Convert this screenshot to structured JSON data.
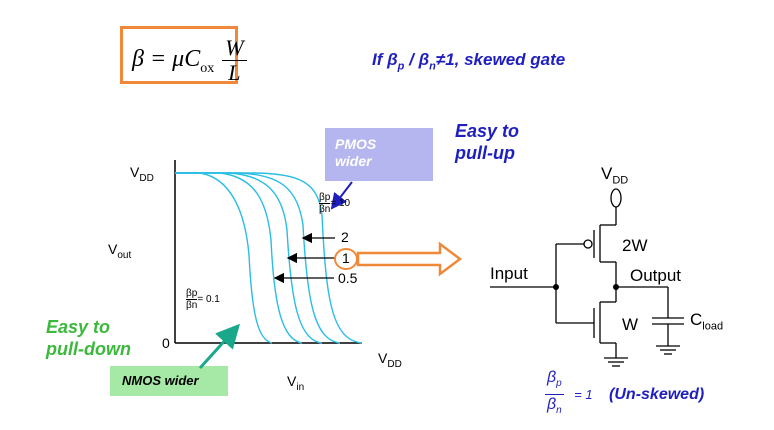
{
  "formula": {
    "lhs": "β = μC",
    "sub": "ox",
    "num": "W",
    "den": "L"
  },
  "skew_note": "If βp / βn≠1, skewed gate",
  "skew_note_parts": {
    "pre": "If β",
    "p": "p",
    "mid": " / β",
    "n": "n",
    "post": "≠1, skewed gate"
  },
  "plot": {
    "y_top_label": "V",
    "y_top_sub": "DD",
    "y_axis_label": "V",
    "y_axis_sub": "out",
    "zero": "0",
    "x_right_label": "V",
    "x_right_sub": "DD",
    "x_axis_label": "V",
    "x_axis_sub": "in",
    "ratio_high": {
      "num": "βp",
      "den": "βn",
      "value": "= 10"
    },
    "ratio_low": {
      "num": "βp",
      "den": "βn",
      "value": "= 0.1"
    },
    "ratio_2": "2",
    "ratio_1": "1",
    "ratio_05": "0.5"
  },
  "annotations": {
    "pmos": "PMOS wider",
    "pmos_line1": "PMOS",
    "pmos_line2": "wider",
    "nmos": "NMOS wider",
    "pullup_line1": "Easy to",
    "pullup_line2": "pull-up",
    "pulldown_line1": "Easy to",
    "pulldown_line2": "pull-down"
  },
  "circuit": {
    "vdd": "V",
    "vdd_sub": "DD",
    "pmos_size": "2W",
    "nmos_size": "W",
    "input": "Input",
    "output": "Output",
    "cload": "C",
    "cload_sub": "load"
  },
  "ratio_caption": {
    "num": "β",
    "num_sub": "p",
    "den": "β",
    "den_sub": "n",
    "eq": "= 1",
    "tag": "(Un-skewed)"
  },
  "colors": {
    "curve": "#2bbde6",
    "accent_orange": "#f0883a",
    "blue_text": "#1f1fbf",
    "green_text": "#3cb93c",
    "pmos_box": "#b5b5f0",
    "nmos_box": "#a6e8a6"
  }
}
